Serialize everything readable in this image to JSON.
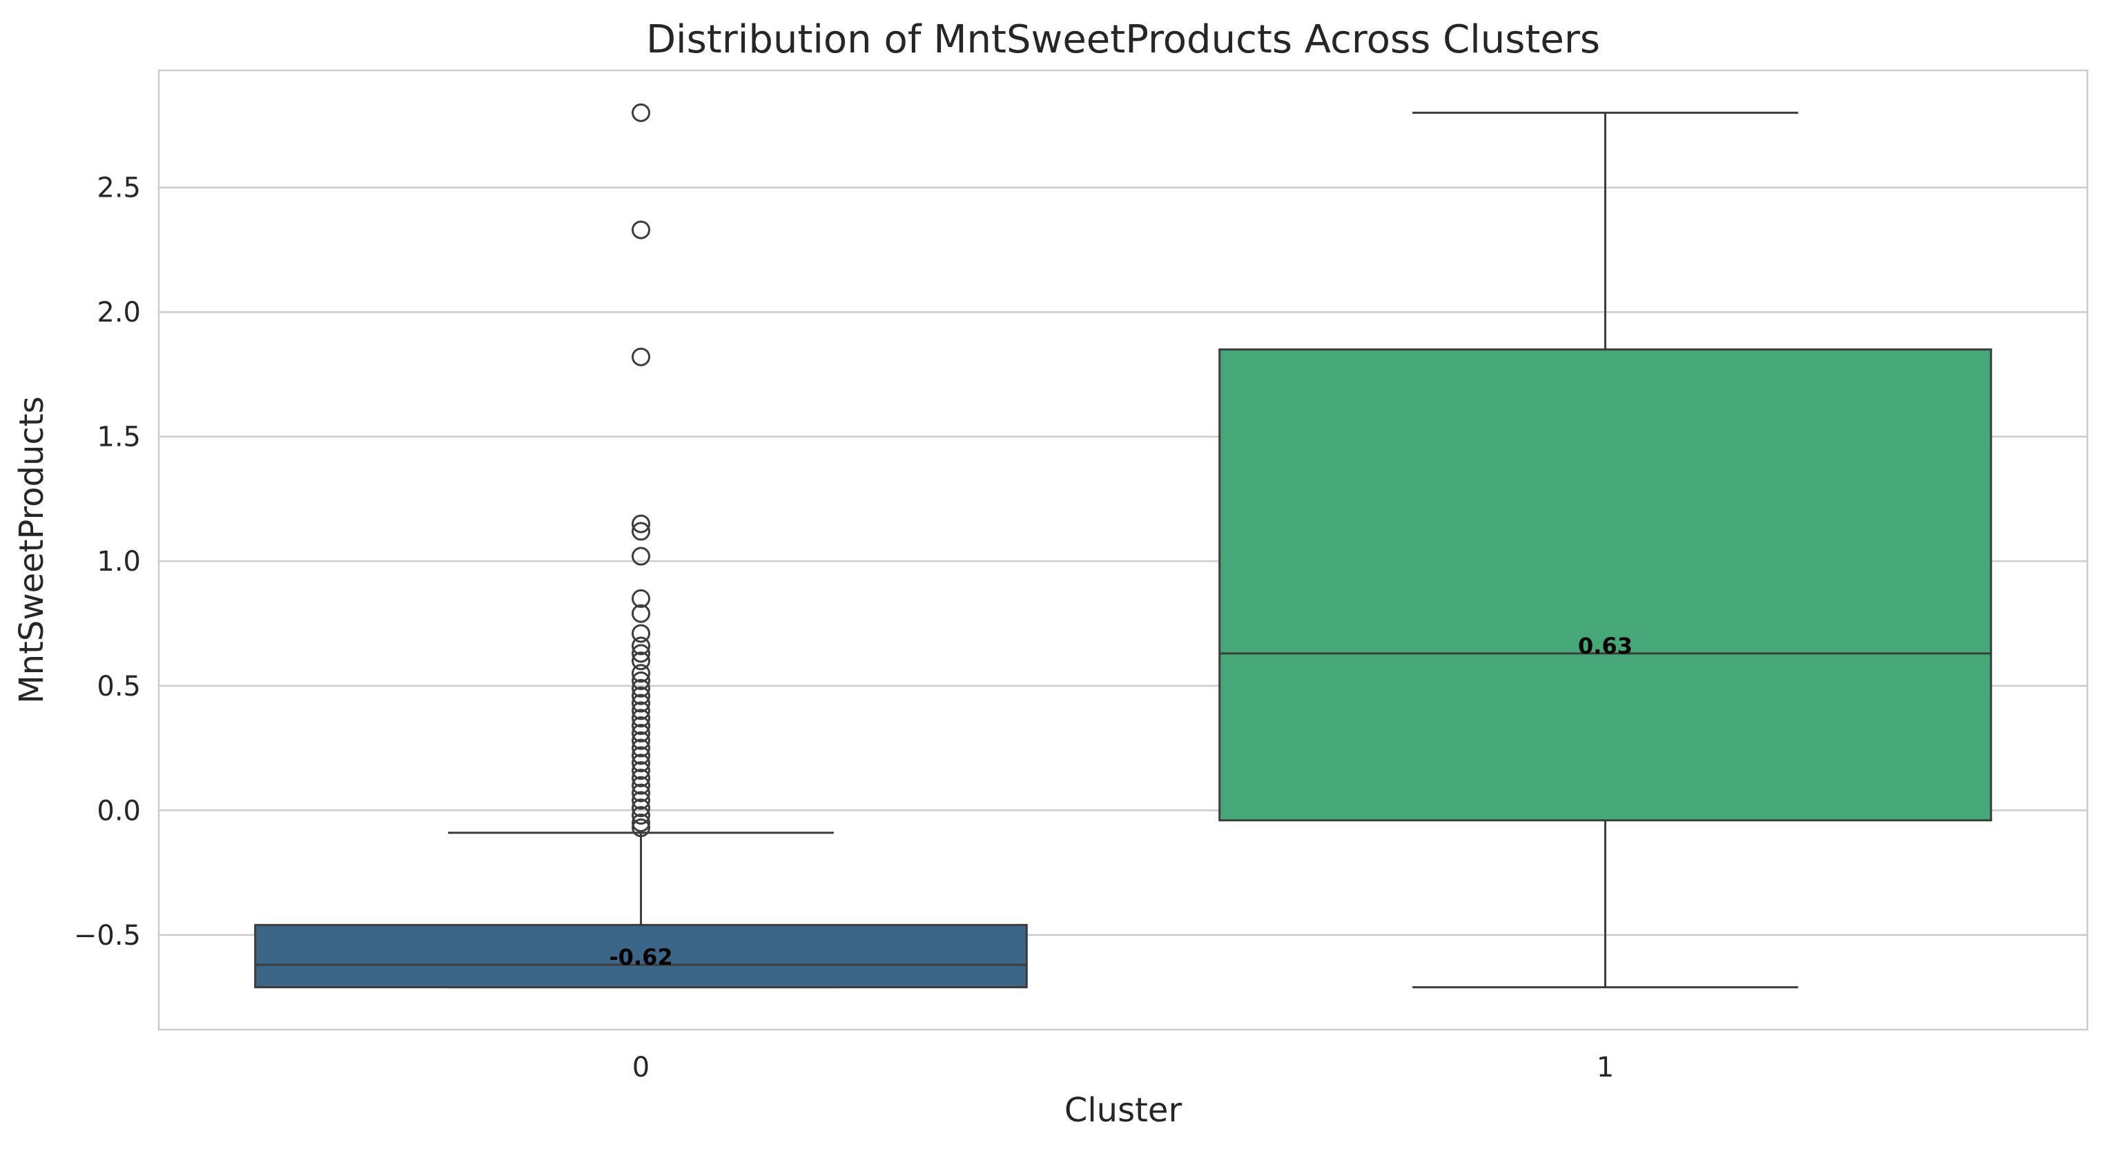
{
  "chart_data": {
    "type": "box",
    "title": "Distribution of MntSweetProducts Across Clusters",
    "xlabel": "Cluster",
    "ylabel": "MntSweetProducts",
    "ylim": [
      -0.88,
      2.97
    ],
    "yticks": [
      -0.5,
      0.0,
      0.5,
      1.0,
      1.5,
      2.0,
      2.5
    ],
    "ytick_labels": [
      "−0.5",
      "0.0",
      "0.5",
      "1.0",
      "1.5",
      "2.0",
      "2.5"
    ],
    "grid": true,
    "categories": [
      "0",
      "1"
    ],
    "boxes": [
      {
        "category": "0",
        "whisker_low": -0.71,
        "q1": -0.71,
        "median": -0.62,
        "q3": -0.46,
        "whisker_high": -0.09,
        "median_label": "-0.62",
        "color": "#3b6688",
        "outliers": [
          2.8,
          2.33,
          1.82,
          1.15,
          1.12,
          1.02,
          0.85,
          0.79,
          0.71,
          0.66,
          0.63,
          0.6,
          0.55,
          0.52,
          0.49,
          0.46,
          0.43,
          0.4,
          0.37,
          0.34,
          0.31,
          0.28,
          0.25,
          0.22,
          0.19,
          0.16,
          0.13,
          0.1,
          0.07,
          0.04,
          0.01,
          -0.02,
          -0.05,
          -0.07
        ]
      },
      {
        "category": "1",
        "whisker_low": -0.71,
        "q1": -0.04,
        "median": 0.63,
        "q3": 1.85,
        "whisker_high": 2.8,
        "median_label": "0.63",
        "color": "#47a877",
        "outliers": []
      }
    ]
  }
}
